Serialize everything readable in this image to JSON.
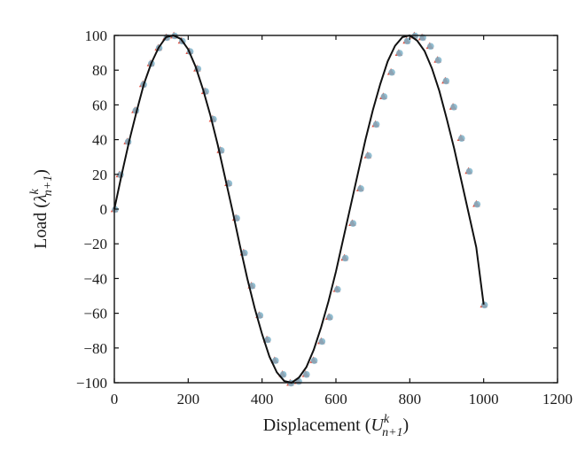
{
  "chart_data": {
    "type": "line",
    "title": "",
    "xlabel": {
      "base": "Displacement (",
      "var": "U",
      "sup": "k",
      "sub": "n+1",
      "close": ")"
    },
    "ylabel": {
      "base": "Load (",
      "var": "λ",
      "sup": "k",
      "sub": "n+1",
      "close": ")"
    },
    "xlim": [
      0,
      1200
    ],
    "ylim": [
      -100,
      100
    ],
    "xticks": [
      0,
      200,
      400,
      600,
      800,
      1000,
      1200
    ],
    "yticks": [
      -100,
      -80,
      -60,
      -40,
      -20,
      0,
      20,
      40,
      60,
      80,
      100
    ],
    "xtick_labels": [
      "0",
      "200",
      "400",
      "600",
      "800",
      "1000",
      "1200"
    ],
    "ytick_labels": [
      "−100",
      "−80",
      "−60",
      "−40",
      "−20",
      "0",
      "20",
      "40",
      "60",
      "80",
      "100"
    ],
    "grid": false,
    "legend": "none",
    "colors": {
      "curve": "#111111",
      "marker_a": "#e04b3a",
      "marker_b": "#7fb3c9"
    },
    "curve": {
      "description_x": [
        0,
        20,
        40,
        60,
        80,
        100,
        120,
        140,
        160,
        180,
        200,
        220,
        240,
        260,
        280,
        300,
        320,
        340,
        360,
        380,
        400,
        420,
        440,
        460,
        480,
        500,
        520,
        540,
        560,
        580,
        600,
        620,
        640,
        660,
        680,
        700,
        720,
        740,
        760,
        780,
        800,
        820,
        840,
        860,
        880,
        900,
        920,
        940,
        960,
        980,
        1000
      ],
      "y": [
        0,
        20,
        39,
        56,
        72,
        84,
        93,
        99,
        100,
        98,
        92,
        82,
        69,
        54,
        37,
        18,
        -1,
        -21,
        -40,
        -57,
        -72,
        -85,
        -94,
        -99,
        -100,
        -97,
        -91,
        -81,
        -68,
        -53,
        -36,
        -17,
        2,
        21,
        40,
        57,
        72,
        85,
        94,
        99,
        100,
        97,
        91,
        81,
        68,
        52,
        35,
        16,
        -3,
        -22,
        -55
      ]
    },
    "series": [
      {
        "marker": "triangle",
        "x": [
          0,
          14,
          35,
          56,
          77,
          98,
          119,
          140,
          161,
          182,
          203,
          224,
          245,
          266,
          287,
          308,
          329,
          350,
          371,
          392,
          413,
          434,
          455,
          476,
          497,
          518,
          539,
          560,
          581,
          602,
          623,
          644,
          665,
          686,
          707,
          728,
          749,
          770,
          791,
          812,
          833,
          854,
          875,
          896,
          917,
          938,
          959,
          980,
          1000
        ],
        "y": [
          0,
          20,
          39,
          57,
          72,
          84,
          93,
          99,
          100,
          97,
          91,
          81,
          68,
          52,
          34,
          15,
          -5,
          -25,
          -44,
          -61,
          -75,
          -87,
          -95,
          -100,
          -99,
          -95,
          -87,
          -76,
          -62,
          -46,
          -28,
          -8,
          12,
          31,
          49,
          65,
          79,
          90,
          97,
          100,
          99,
          94,
          86,
          74,
          59,
          41,
          22,
          3,
          -55
        ]
      },
      {
        "marker": "star",
        "x": [
          0,
          14,
          35,
          56,
          77,
          98,
          119,
          140,
          161,
          182,
          203,
          224,
          245,
          266,
          287,
          308,
          329,
          350,
          371,
          392,
          413,
          434,
          455,
          476,
          497,
          518,
          539,
          560,
          581,
          602,
          623,
          644,
          665,
          686,
          707,
          728,
          749,
          770,
          791,
          812,
          833,
          854,
          875,
          896,
          917,
          938,
          959,
          980,
          1000
        ],
        "y": [
          0,
          20,
          39,
          57,
          72,
          84,
          93,
          99,
          100,
          97,
          91,
          81,
          68,
          52,
          34,
          15,
          -5,
          -25,
          -44,
          -61,
          -75,
          -87,
          -95,
          -100,
          -99,
          -95,
          -87,
          -76,
          -62,
          -46,
          -28,
          -8,
          12,
          31,
          49,
          65,
          79,
          90,
          97,
          100,
          99,
          94,
          86,
          74,
          59,
          41,
          22,
          3,
          -55
        ]
      }
    ]
  }
}
